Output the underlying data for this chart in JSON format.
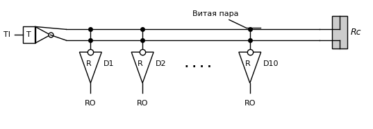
{
  "title": "Витая пара",
  "label_TI": "TI",
  "label_Rc": "Rc",
  "label_T": "T",
  "label_R": "R",
  "receivers": [
    "D1",
    "D2",
    "D10"
  ],
  "ro_labels": [
    "RO",
    "RO",
    "RO"
  ],
  "dots_label": ". . . .",
  "bg_color": "#ffffff",
  "line_color": "#000000",
  "font_size": 8
}
